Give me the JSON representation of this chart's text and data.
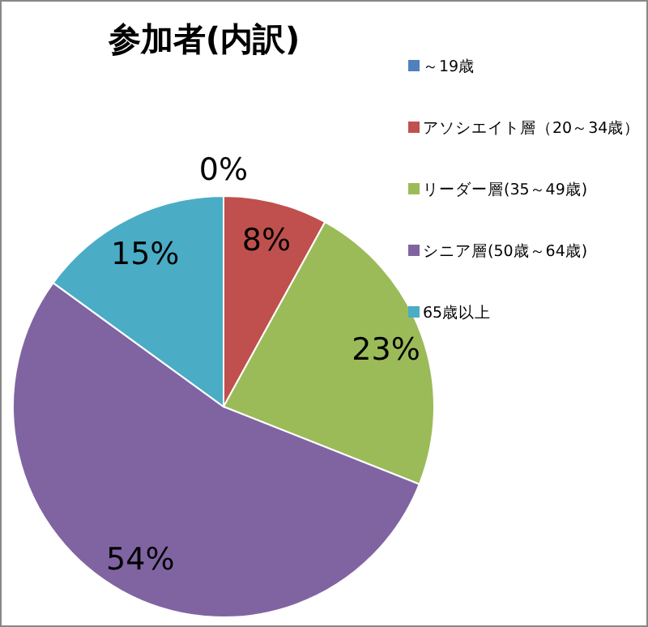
{
  "chart_data": {
    "type": "pie",
    "title": "参加者(内訳)",
    "categories": [
      "～19歳",
      "アソシエイト層（20～34歳）",
      "リーダー層(35～49歳)",
      "シニア層(50歳～64歳)",
      "65歳以上"
    ],
    "values": [
      0,
      8,
      23,
      54,
      15
    ],
    "value_labels": [
      "0%",
      "8%",
      "23%",
      "54%",
      "15%"
    ],
    "colors": [
      "#4f81bd",
      "#c0504d",
      "#9bbb59",
      "#8064a2",
      "#4bacc6"
    ],
    "legend": "right"
  }
}
